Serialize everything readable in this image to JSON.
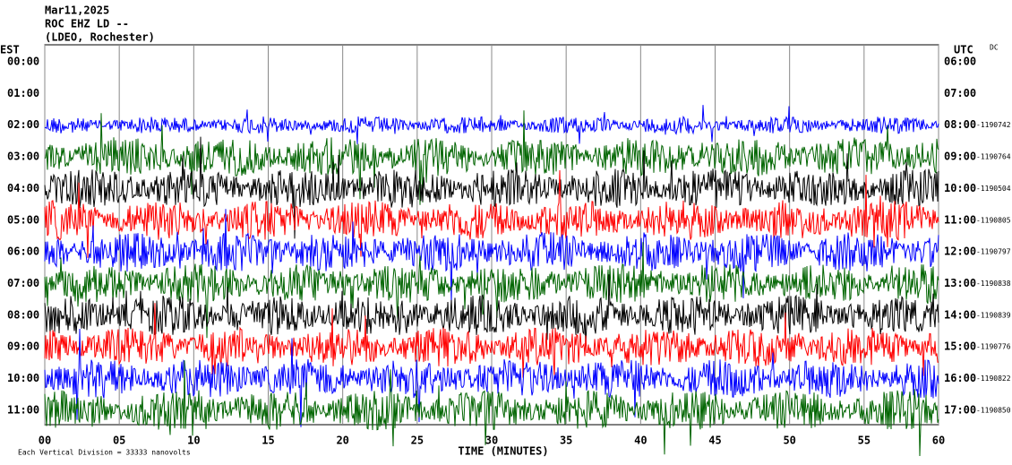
{
  "header": {
    "date": "Mar11,2025",
    "station": "ROC EHZ LD --",
    "network": "(LDEO, Rochester)",
    "left_zone": "EST",
    "right_zone": "UTC",
    "dc_label": "DC"
  },
  "rows": [
    {
      "est": "00:00",
      "utc": "06:00"
    },
    {
      "est": "01:00",
      "utc": "07:00"
    },
    {
      "est": "02:00",
      "utc": "08:00",
      "dc": "-1190742"
    },
    {
      "est": "03:00",
      "utc": "09:00",
      "dc": "-1190764"
    },
    {
      "est": "04:00",
      "utc": "10:00",
      "dc": "-1190504"
    },
    {
      "est": "05:00",
      "utc": "11:00",
      "dc": "-1190805"
    },
    {
      "est": "06:00",
      "utc": "12:00",
      "dc": "-1190797"
    },
    {
      "est": "07:00",
      "utc": "13:00",
      "dc": "-1190838"
    },
    {
      "est": "08:00",
      "utc": "14:00",
      "dc": "-1190839"
    },
    {
      "est": "09:00",
      "utc": "15:00",
      "dc": "-1190776"
    },
    {
      "est": "10:00",
      "utc": "16:00",
      "dc": "-1190822"
    },
    {
      "est": "11:00",
      "utc": "17:00",
      "dc": "-1190850"
    }
  ],
  "x_axis": {
    "title": "TIME (MINUTES)",
    "range": [
      0,
      60
    ],
    "ticks": [
      {
        "value": 0,
        "label": "00"
      },
      {
        "value": 5,
        "label": "05"
      },
      10,
      15,
      20,
      25,
      30,
      35,
      40,
      45,
      50,
      55,
      60
    ]
  },
  "footer": "Each Vertical Division = 33333 nanovolts",
  "trace_colors": [
    "#0000ff",
    "#006400",
    "#000000",
    "#ff0000"
  ]
}
